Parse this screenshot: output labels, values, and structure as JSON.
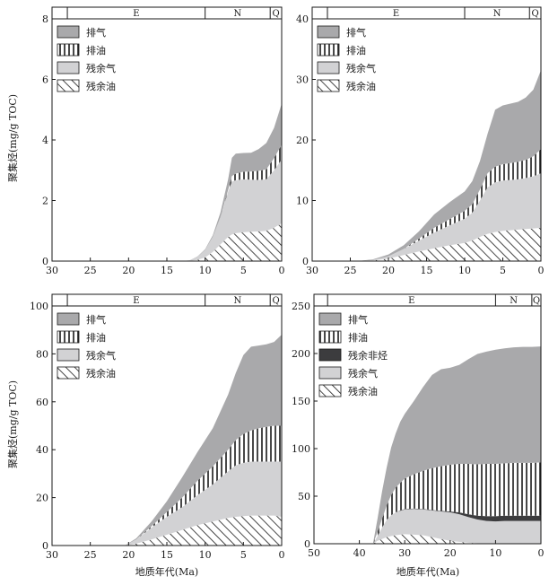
{
  "ylabel": "聚集烃(mg/g TOC)",
  "xlabel": "地质年代(Ma)",
  "colors": {
    "expelled_gas": "#a9a9ab",
    "residual_gas": "#d2d2d4",
    "residual_non_hc": "#3c3c3e",
    "line": "#1a1a1a"
  },
  "chart_data": [
    {
      "type": "area",
      "stacked": true,
      "xlim": [
        30,
        0
      ],
      "ylim": [
        0,
        8
      ],
      "xticks": [
        30,
        25,
        20,
        15,
        10,
        5,
        0
      ],
      "yticks": [
        0,
        2,
        4,
        6,
        8
      ],
      "show_xlabel": false,
      "show_ylabel": true,
      "grid": false,
      "legend_position": "top-left",
      "epochs": [
        {
          "label": "E",
          "from": 28,
          "to": 10
        },
        {
          "label": "N",
          "from": 10,
          "to": 1.5
        },
        {
          "label": "Q",
          "from": 1.5,
          "to": 0
        }
      ],
      "x": [
        13,
        12,
        11,
        10,
        9,
        8,
        7,
        6.5,
        6,
        5,
        4,
        3,
        2,
        1,
        0
      ],
      "series": [
        {
          "name": "残余油",
          "style": "diag",
          "values": [
            0,
            0.01,
            0.04,
            0.12,
            0.3,
            0.55,
            0.8,
            0.88,
            0.92,
            0.95,
            0.97,
            0.98,
            1.0,
            1.1,
            1.25
          ]
        },
        {
          "name": "残余气",
          "style": "gray",
          "values": [
            0,
            0.02,
            0.1,
            0.25,
            0.5,
            0.9,
            1.5,
            1.75,
            1.75,
            1.75,
            1.72,
            1.7,
            1.7,
            1.9,
            2.1
          ]
        },
        {
          "name": "排油",
          "style": "vert",
          "values": [
            0,
            0,
            0,
            0,
            0,
            0,
            0.05,
            0.18,
            0.22,
            0.25,
            0.27,
            0.3,
            0.33,
            0.4,
            0.5
          ]
        },
        {
          "name": "排气",
          "style": "dark",
          "values": [
            0,
            0,
            0.01,
            0.02,
            0.05,
            0.15,
            0.35,
            0.6,
            0.66,
            0.62,
            0.62,
            0.72,
            0.87,
            1.0,
            1.35
          ]
        }
      ],
      "legend_order": [
        "排气",
        "排油",
        "残余气",
        "残余油"
      ]
    },
    {
      "type": "area",
      "stacked": true,
      "xlim": [
        30,
        0
      ],
      "ylim": [
        0,
        40
      ],
      "xticks": [
        30,
        25,
        20,
        15,
        10,
        5,
        0
      ],
      "yticks": [
        0,
        10,
        20,
        30,
        40
      ],
      "show_xlabel": false,
      "show_ylabel": false,
      "grid": false,
      "legend_position": "top-left",
      "epochs": [
        {
          "label": "E",
          "from": 28,
          "to": 10
        },
        {
          "label": "N",
          "from": 10,
          "to": 1.5
        },
        {
          "label": "Q",
          "from": 1.5,
          "to": 0
        }
      ],
      "x": [
        24,
        22,
        20,
        18,
        16,
        14,
        12,
        10,
        9,
        8,
        7,
        6,
        5,
        4,
        3,
        2,
        1,
        0
      ],
      "series": [
        {
          "name": "残余油",
          "style": "diag",
          "values": [
            0,
            0.1,
            0.4,
            1.0,
            1.6,
            2.1,
            2.6,
            3.0,
            3.4,
            4.0,
            4.5,
            4.8,
            5.0,
            5.1,
            5.2,
            5.3,
            5.4,
            5.5
          ]
        },
        {
          "name": "残余气",
          "style": "gray",
          "values": [
            0,
            0.1,
            0.4,
            1.0,
            1.8,
            2.6,
            3.3,
            4.0,
            4.6,
            6.0,
            7.7,
            8.2,
            8.3,
            8.3,
            8.3,
            8.4,
            8.6,
            9.0
          ]
        },
        {
          "name": "排油",
          "style": "vert",
          "values": [
            0,
            0,
            0,
            0,
            0.3,
            0.8,
            1.0,
            1.3,
            1.4,
            1.8,
            2.3,
            2.6,
            2.7,
            2.8,
            2.9,
            3.0,
            3.3,
            4.0
          ]
        },
        {
          "name": "排气",
          "style": "dark",
          "values": [
            0,
            0.1,
            0.3,
            0.6,
            1.2,
            2.2,
            2.8,
            3.2,
            3.8,
            4.7,
            6.5,
            9.4,
            9.7,
            9.8,
            9.9,
            10.3,
            11.0,
            13.0
          ]
        }
      ],
      "legend_order": [
        "排气",
        "排油",
        "残余气",
        "残余油"
      ]
    },
    {
      "type": "area",
      "stacked": true,
      "xlim": [
        30,
        0
      ],
      "ylim": [
        0,
        100
      ],
      "xticks": [
        30,
        25,
        20,
        15,
        10,
        5,
        0
      ],
      "yticks": [
        0,
        20,
        40,
        60,
        80,
        100
      ],
      "show_xlabel": true,
      "show_ylabel": true,
      "grid": false,
      "legend_position": "top-left",
      "epochs": [
        {
          "label": "E",
          "from": 28,
          "to": 10
        },
        {
          "label": "N",
          "from": 10,
          "to": 1.5
        },
        {
          "label": "Q",
          "from": 1.5,
          "to": 0
        }
      ],
      "x": [
        20.5,
        19,
        17,
        15,
        13,
        11,
        9,
        7,
        6,
        5,
        4,
        3,
        2,
        1,
        0
      ],
      "series": [
        {
          "name": "残余油",
          "style": "diag",
          "values": [
            0,
            0.8,
            2.5,
            4.5,
            6.5,
            8.5,
            10.0,
            11.5,
            12.0,
            12.3,
            12.5,
            12.5,
            12.5,
            12.5,
            12.0
          ]
        },
        {
          "name": "残余气",
          "style": "gray",
          "values": [
            0,
            1.7,
            5.0,
            7.5,
            9.5,
            12.5,
            15.5,
            19.5,
            21.5,
            22.2,
            22.5,
            22.5,
            22.5,
            22.5,
            23.0
          ]
        },
        {
          "name": "排油",
          "style": "vert",
          "values": [
            0,
            0,
            0.5,
            2.0,
            4.0,
            6.0,
            7.5,
            9.0,
            10.5,
            12.0,
            13.0,
            14.0,
            14.5,
            15.0,
            15.0
          ]
        },
        {
          "name": "排气",
          "style": "dark",
          "values": [
            0,
            0.5,
            2.0,
            4.5,
            8.5,
            12.0,
            16.0,
            23.0,
            28.0,
            33.0,
            35.0,
            34.5,
            34.5,
            35.0,
            38.0
          ]
        }
      ],
      "legend_order": [
        "排气",
        "排油",
        "残余气",
        "残余油"
      ]
    },
    {
      "type": "area",
      "stacked": true,
      "xlim": [
        50,
        0
      ],
      "ylim": [
        0,
        250
      ],
      "xticks": [
        50,
        40,
        30,
        20,
        10,
        0
      ],
      "yticks": [
        0,
        50,
        100,
        150,
        200,
        250
      ],
      "show_xlabel": true,
      "show_ylabel": false,
      "grid": false,
      "legend_position": "top-left",
      "epochs": [
        {
          "label": "E",
          "from": 47,
          "to": 10
        },
        {
          "label": "N",
          "from": 10,
          "to": 2
        },
        {
          "label": "Q",
          "from": 2,
          "to": 0
        }
      ],
      "x": [
        37,
        36,
        35,
        34,
        33,
        32,
        31,
        30,
        28,
        26,
        24,
        22,
        20,
        18,
        16,
        14,
        12,
        10,
        8,
        6,
        4,
        2,
        0
      ],
      "series": [
        {
          "name": "残余油",
          "style": "diag",
          "values": [
            0,
            3,
            5,
            7,
            8,
            9,
            9.5,
            10,
            9.5,
            9,
            7,
            5,
            3,
            2,
            1,
            0.5,
            0,
            0,
            0,
            0,
            0,
            0,
            0
          ]
        },
        {
          "name": "残余气",
          "style": "gray",
          "values": [
            0,
            5,
            12,
            18,
            22,
            24,
            25,
            26,
            27,
            27,
            28,
            29,
            30,
            29,
            27,
            25,
            24,
            23.5,
            24,
            24,
            24,
            24,
            24
          ]
        },
        {
          "name": "残余非烃",
          "style": "black",
          "values": [
            0,
            0,
            0,
            0,
            0,
            0,
            0.5,
            0.5,
            0.5,
            0.5,
            0.5,
            0.5,
            1,
            2,
            3,
            4,
            5,
            5.5,
            5.5,
            5.5,
            5.5,
            5.5,
            5.5
          ]
        },
        {
          "name": "排油",
          "style": "vert",
          "values": [
            0,
            4,
            9,
            15,
            21,
            26,
            29,
            32,
            36,
            40,
            44,
            47,
            49,
            51,
            53,
            54,
            55,
            55,
            55,
            55.5,
            55.5,
            55.5,
            56
          ]
        },
        {
          "name": "排气",
          "style": "dark",
          "values": [
            0,
            14,
            29,
            40,
            50,
            57,
            64,
            68,
            77,
            88,
            98,
            102,
            102,
            104,
            110,
            116,
            118,
            120,
            121,
            121.5,
            122,
            122,
            122
          ]
        }
      ],
      "legend_order": [
        "排气",
        "排油",
        "残余非烃",
        "残余气",
        "残余油"
      ]
    }
  ]
}
